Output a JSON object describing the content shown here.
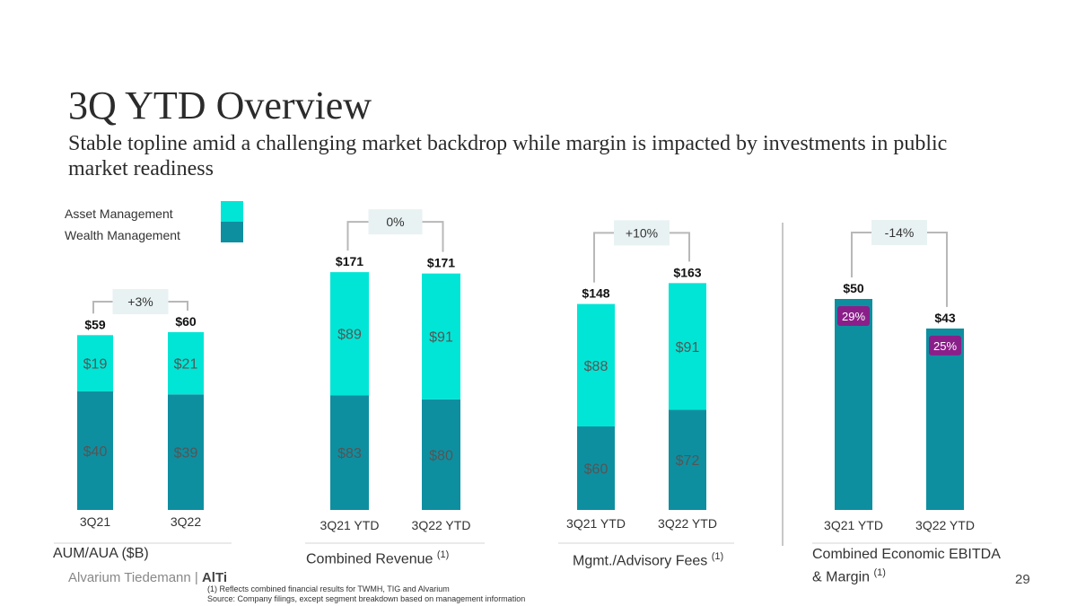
{
  "header": {
    "title": "3Q YTD Overview",
    "subtitle": "Stable topline amid a challenging market backdrop while margin is impacted by investments in public market readiness"
  },
  "legend": {
    "items": [
      {
        "label": "Asset Management",
        "color": "#00E5D6"
      },
      {
        "label": "Wealth Management",
        "color": "#0E8FA0"
      }
    ]
  },
  "colors": {
    "asset_management": "#00E5D6",
    "wealth_management": "#0E8FA0",
    "change_box": "#E8F2F3",
    "margin_badge": "#8A1F8A",
    "bracket": "#b8b8b8"
  },
  "chart_data": [
    {
      "type": "bar",
      "stacked": true,
      "title": "AUM/AUA ($B)",
      "categories": [
        "3Q21",
        "3Q22"
      ],
      "series": [
        {
          "name": "Wealth Management",
          "values": [
            40,
            39
          ],
          "labels": [
            "$40",
            "$39"
          ]
        },
        {
          "name": "Asset Management",
          "values": [
            19,
            21
          ],
          "labels": [
            "$19",
            "$21"
          ]
        }
      ],
      "totals": [
        59,
        60
      ],
      "total_labels": [
        "$59",
        "$60"
      ],
      "change_label": "+3%"
    },
    {
      "type": "bar",
      "stacked": true,
      "title": "Combined Revenue",
      "title_footnote": "(1)",
      "categories": [
        "3Q21 YTD",
        "3Q22 YTD"
      ],
      "series": [
        {
          "name": "Wealth Management",
          "values": [
            83,
            80
          ],
          "labels": [
            "$83",
            "$80"
          ]
        },
        {
          "name": "Asset Management",
          "values": [
            89,
            91
          ],
          "labels": [
            "$89",
            "$91"
          ]
        }
      ],
      "totals": [
        171,
        171
      ],
      "total_labels": [
        "$171",
        "$171"
      ],
      "change_label": "0%"
    },
    {
      "type": "bar",
      "stacked": true,
      "title": "Mgmt./Advisory Fees",
      "title_footnote": "(1)",
      "categories": [
        "3Q21 YTD",
        "3Q22 YTD"
      ],
      "series": [
        {
          "name": "Wealth Management",
          "values": [
            60,
            72
          ],
          "labels": [
            "$60",
            "$72"
          ]
        },
        {
          "name": "Asset Management",
          "values": [
            88,
            91
          ],
          "labels": [
            "$88",
            "$91"
          ]
        }
      ],
      "totals": [
        148,
        163
      ],
      "total_labels": [
        "$148",
        "$163"
      ],
      "change_label": "+10%"
    },
    {
      "type": "bar",
      "stacked": false,
      "title": "Combined Economic EBITDA & Margin",
      "title_footnote": "(1)",
      "categories": [
        "3Q21 YTD",
        "3Q22 YTD"
      ],
      "series": [
        {
          "values": [
            50,
            43
          ]
        }
      ],
      "totals": [
        50,
        43
      ],
      "total_labels": [
        "$50",
        "$43"
      ],
      "margins": [
        29,
        25
      ],
      "margin_labels": [
        "29%",
        "25%"
      ],
      "change_label": "-14%"
    }
  ],
  "footer": {
    "brand_main": "Alvarium Tiedemann | ",
    "brand_strong": "AlTi",
    "footnote_1": "(1) Reflects combined financial results for TWMH, TIG and Alvarium",
    "footnote_2": "Source: Company filings, except segment breakdown based on management information",
    "page_number": "29"
  }
}
